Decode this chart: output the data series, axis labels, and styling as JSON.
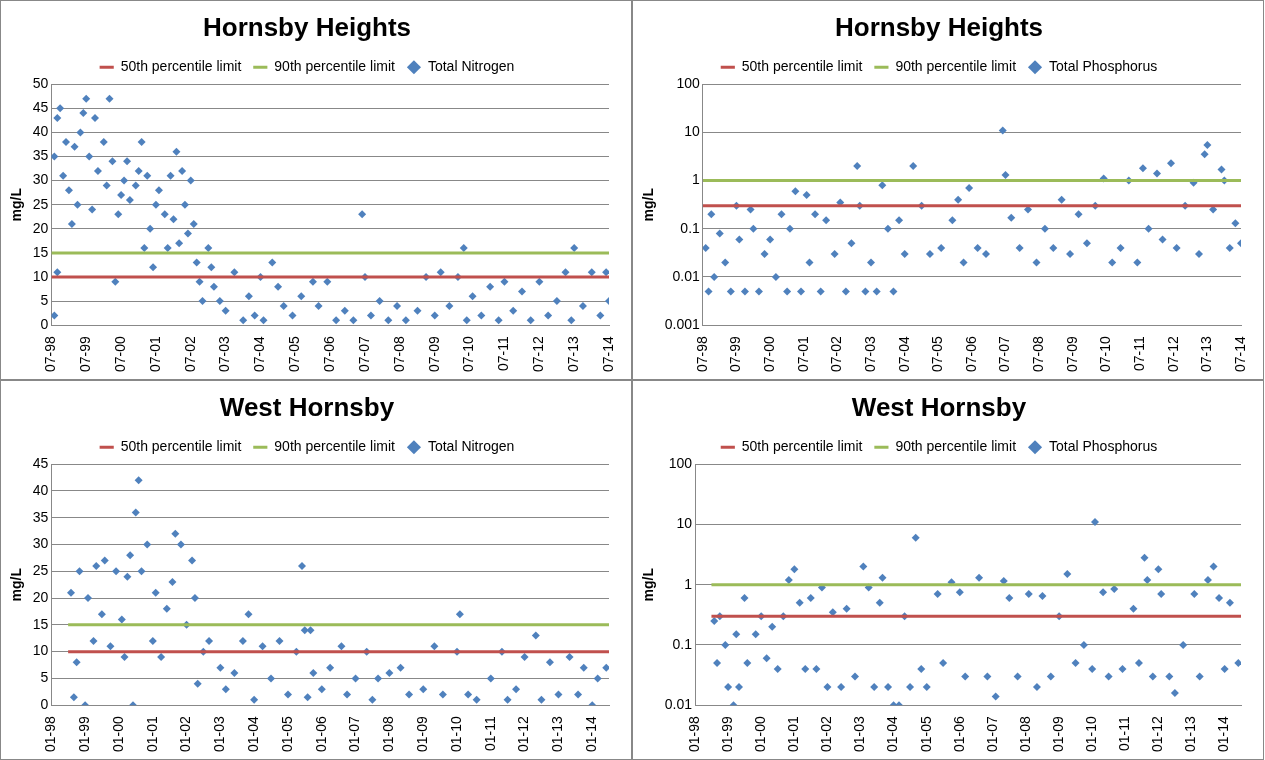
{
  "chart_data": [
    {
      "type": "scatter",
      "title": "Hornsby Heights",
      "ylabel": "mg/L",
      "legend": "top",
      "grid": "y",
      "xlim": [
        "1998-07",
        "2014-07"
      ],
      "ylim": [
        0,
        50
      ],
      "yticks": [
        0,
        5,
        10,
        15,
        20,
        25,
        30,
        35,
        40,
        45,
        50
      ],
      "xticks": [
        {
          "value": "1998-07",
          "label": "07-98"
        },
        {
          "value": "1999-07",
          "label": "07-99"
        },
        {
          "value": "2000-07",
          "label": "07-00"
        },
        {
          "value": "2001-07",
          "label": "07-01"
        },
        {
          "value": "2002-07",
          "label": "07-02"
        },
        {
          "value": "2003-07",
          "label": "07-03"
        },
        {
          "value": "2004-07",
          "label": "07-04"
        },
        {
          "value": "2005-07",
          "label": "07-05"
        },
        {
          "value": "2006-07",
          "label": "07-06"
        },
        {
          "value": "2007-07",
          "label": "07-07"
        },
        {
          "value": "2008-07",
          "label": "07-08"
        },
        {
          "value": "2009-07",
          "label": "07-09"
        },
        {
          "value": "2010-07",
          "label": "07-10"
        },
        {
          "value": "2011-07",
          "label": "07-11"
        },
        {
          "value": "2012-07",
          "label": "07-12"
        },
        {
          "value": "2013-07",
          "label": "07-13"
        },
        {
          "value": "2014-07",
          "label": "07-14"
        }
      ],
      "series": [
        {
          "name": "50th percentile limit",
          "type": "line",
          "color": "#c0504d",
          "x": [
            "1998-07",
            "2014-07"
          ],
          "values": [
            10,
            10
          ]
        },
        {
          "name": "90th percentile limit",
          "type": "line",
          "color": "#9bbb59",
          "x": [
            "1998-07",
            "2014-07"
          ],
          "values": [
            15,
            15
          ]
        },
        {
          "name": "Total Nitrogen",
          "marker": "diamond",
          "color": "#4f81bd",
          "x": [
            "1998-08",
            "1998-08",
            "1998-09",
            "1998-09",
            "1998-10",
            "1998-11",
            "1998-12",
            "1999-01",
            "1999-02",
            "1999-03",
            "1999-04",
            "1999-05",
            "1999-06",
            "1999-07",
            "1999-08",
            "1999-09",
            "1999-10",
            "1999-11",
            "2000-01",
            "2000-02",
            "2000-03",
            "2000-04",
            "2000-05",
            "2000-06",
            "2000-07",
            "2000-08",
            "2000-09",
            "2000-10",
            "2000-12",
            "2001-01",
            "2001-02",
            "2001-03",
            "2001-04",
            "2001-05",
            "2001-06",
            "2001-07",
            "2001-08",
            "2001-10",
            "2001-11",
            "2001-12",
            "2002-01",
            "2002-02",
            "2002-03",
            "2002-04",
            "2002-05",
            "2002-06",
            "2002-07",
            "2002-08",
            "2002-09",
            "2002-10",
            "2002-11",
            "2003-01",
            "2003-02",
            "2003-03",
            "2003-05",
            "2003-07",
            "2003-10",
            "2004-01",
            "2004-03",
            "2004-05",
            "2004-07",
            "2004-08",
            "2004-11",
            "2005-01",
            "2005-03",
            "2005-06",
            "2005-09",
            "2006-01",
            "2006-03",
            "2006-06",
            "2006-09",
            "2006-12",
            "2007-03",
            "2007-06",
            "2007-07",
            "2007-09",
            "2007-12",
            "2008-03",
            "2008-06",
            "2008-09",
            "2009-01",
            "2009-04",
            "2009-07",
            "2009-09",
            "2009-12",
            "2010-03",
            "2010-05",
            "2010-06",
            "2010-08",
            "2010-11",
            "2011-02",
            "2011-05",
            "2011-07",
            "2011-10",
            "2012-01",
            "2012-04",
            "2012-07",
            "2012-10",
            "2013-01",
            "2013-04",
            "2013-06",
            "2013-07",
            "2013-10",
            "2014-01",
            "2014-04",
            "2014-06",
            "2014-07"
          ],
          "values": [
            35,
            2,
            43,
            11,
            45,
            31,
            38,
            28,
            21,
            37,
            25,
            40,
            44,
            47,
            35,
            24,
            43,
            32,
            38,
            29,
            47,
            34,
            9,
            23,
            27,
            30,
            34,
            26,
            29,
            32,
            38,
            16,
            31,
            20,
            12,
            25,
            28,
            23,
            16,
            31,
            22,
            36,
            17,
            32,
            25,
            19,
            30,
            21,
            13,
            9,
            5,
            16,
            12,
            8,
            5,
            3,
            11,
            1,
            6,
            2,
            10,
            1,
            13,
            8,
            4,
            2,
            6,
            9,
            4,
            9,
            1,
            3,
            1,
            23,
            10,
            2,
            5,
            1,
            4,
            1,
            3,
            10,
            2,
            11,
            4,
            10,
            16,
            1,
            6,
            2,
            8,
            1,
            9,
            3,
            7,
            1,
            9,
            2,
            5,
            11,
            1,
            16,
            4,
            11,
            2,
            11,
            5
          ]
        }
      ]
    },
    {
      "type": "scatter",
      "title": "Hornsby Heights",
      "ylabel": "mg/L",
      "legend": "top",
      "grid": "y",
      "log": "y",
      "xlim": [
        "1998-07",
        "2014-07"
      ],
      "ylim": [
        0.001,
        100
      ],
      "yticks": [
        0.001,
        0.01,
        0.1,
        1,
        10,
        100
      ],
      "xticks": [
        {
          "value": "1998-07",
          "label": "07-98"
        },
        {
          "value": "1999-07",
          "label": "07-99"
        },
        {
          "value": "2000-07",
          "label": "07-00"
        },
        {
          "value": "2001-07",
          "label": "07-01"
        },
        {
          "value": "2002-07",
          "label": "07-02"
        },
        {
          "value": "2003-07",
          "label": "07-03"
        },
        {
          "value": "2004-07",
          "label": "07-04"
        },
        {
          "value": "2005-07",
          "label": "07-05"
        },
        {
          "value": "2006-07",
          "label": "07-06"
        },
        {
          "value": "2007-07",
          "label": "07-07"
        },
        {
          "value": "2008-07",
          "label": "07-08"
        },
        {
          "value": "2009-07",
          "label": "07-09"
        },
        {
          "value": "2010-07",
          "label": "07-10"
        },
        {
          "value": "2011-07",
          "label": "07-11"
        },
        {
          "value": "2012-07",
          "label": "07-12"
        },
        {
          "value": "2013-07",
          "label": "07-13"
        },
        {
          "value": "2014-07",
          "label": "07-14"
        }
      ],
      "series": [
        {
          "name": "50th percentile limit",
          "type": "line",
          "color": "#c0504d",
          "x": [
            "1998-07",
            "2014-07"
          ],
          "values": [
            0.3,
            0.3
          ]
        },
        {
          "name": "90th percentile limit",
          "type": "line",
          "color": "#9bbb59",
          "x": [
            "1998-07",
            "2014-07"
          ],
          "values": [
            1,
            1
          ]
        },
        {
          "name": "Total Phosphorus",
          "marker": "diamond",
          "color": "#4f81bd",
          "x": [
            "1998-08",
            "1998-09",
            "1998-10",
            "1998-11",
            "1999-01",
            "1999-03",
            "1999-05",
            "1999-07",
            "1999-08",
            "1999-10",
            "1999-12",
            "2000-01",
            "2000-03",
            "2000-05",
            "2000-07",
            "2000-09",
            "2000-11",
            "2001-01",
            "2001-02",
            "2001-04",
            "2001-06",
            "2001-08",
            "2001-09",
            "2001-11",
            "2002-01",
            "2002-03",
            "2002-06",
            "2002-08",
            "2002-10",
            "2002-12",
            "2003-02",
            "2003-03",
            "2003-05",
            "2003-07",
            "2003-09",
            "2003-11",
            "2004-01",
            "2004-03",
            "2004-05",
            "2004-07",
            "2004-10",
            "2005-01",
            "2005-04",
            "2005-08",
            "2005-12",
            "2006-02",
            "2006-04",
            "2006-06",
            "2006-09",
            "2006-12",
            "2007-06",
            "2007-07",
            "2007-09",
            "2007-12",
            "2008-03",
            "2008-06",
            "2008-09",
            "2008-12",
            "2009-03",
            "2009-06",
            "2009-09",
            "2009-12",
            "2010-03",
            "2010-06",
            "2010-09",
            "2010-12",
            "2011-03",
            "2011-06",
            "2011-08",
            "2011-10",
            "2012-01",
            "2012-03",
            "2012-06",
            "2012-08",
            "2012-11",
            "2013-02",
            "2013-04",
            "2013-06",
            "2013-07",
            "2013-09",
            "2013-12",
            "2014-01",
            "2014-03",
            "2014-05",
            "2014-07"
          ],
          "values": [
            0.04,
            0.005,
            0.2,
            0.01,
            0.08,
            0.02,
            0.005,
            0.3,
            0.06,
            0.005,
            0.25,
            0.1,
            0.005,
            0.03,
            0.06,
            0.01,
            0.2,
            0.005,
            0.1,
            0.6,
            0.005,
            0.5,
            0.02,
            0.2,
            0.005,
            0.15,
            0.03,
            0.35,
            0.005,
            0.05,
            2,
            0.3,
            0.005,
            0.02,
            0.005,
            0.8,
            0.1,
            0.005,
            0.15,
            0.03,
            2,
            0.3,
            0.03,
            0.04,
            0.15,
            0.4,
            0.02,
            0.7,
            0.04,
            0.03,
            11,
            1.3,
            0.17,
            0.04,
            0.25,
            0.02,
            0.1,
            0.04,
            0.4,
            0.03,
            0.2,
            0.05,
            0.3,
            1.1,
            0.02,
            0.04,
            1,
            0.02,
            1.8,
            0.1,
            1.4,
            0.06,
            2.3,
            0.04,
            0.3,
            0.9,
            0.03,
            3.5,
            5.5,
            0.25,
            1.7,
            1,
            0.04,
            0.13,
            0.05
          ]
        }
      ]
    },
    {
      "type": "scatter",
      "title": "West Hornsby",
      "ylabel": "mg/L",
      "legend": "top",
      "grid": "y",
      "xlim": [
        "1998-01",
        "2014-07"
      ],
      "ylim": [
        0,
        45
      ],
      "yticks": [
        0,
        5,
        10,
        15,
        20,
        25,
        30,
        35,
        40,
        45
      ],
      "xticks": [
        {
          "value": "1998-01",
          "label": "01-98"
        },
        {
          "value": "1999-01",
          "label": "01-99"
        },
        {
          "value": "2000-01",
          "label": "01-00"
        },
        {
          "value": "2001-01",
          "label": "01-01"
        },
        {
          "value": "2002-01",
          "label": "01-02"
        },
        {
          "value": "2003-01",
          "label": "01-03"
        },
        {
          "value": "2004-01",
          "label": "01-04"
        },
        {
          "value": "2005-01",
          "label": "01-05"
        },
        {
          "value": "2006-01",
          "label": "01-06"
        },
        {
          "value": "2007-01",
          "label": "01-07"
        },
        {
          "value": "2008-01",
          "label": "01-08"
        },
        {
          "value": "2009-01",
          "label": "01-09"
        },
        {
          "value": "2010-01",
          "label": "01-10"
        },
        {
          "value": "2011-01",
          "label": "01-11"
        },
        {
          "value": "2012-01",
          "label": "01-12"
        },
        {
          "value": "2013-01",
          "label": "01-13"
        },
        {
          "value": "2014-01",
          "label": "01-14"
        }
      ],
      "series": [
        {
          "name": "50th percentile limit",
          "type": "line",
          "color": "#c0504d",
          "x": [
            "1998-07",
            "2014-07"
          ],
          "values": [
            10,
            10
          ]
        },
        {
          "name": "90th percentile limit",
          "type": "line",
          "color": "#9bbb59",
          "x": [
            "1998-07",
            "2014-07"
          ],
          "values": [
            15,
            15
          ]
        },
        {
          "name": "Total Nitrogen",
          "marker": "diamond",
          "color": "#4f81bd",
          "x": [
            "1998-08",
            "1998-09",
            "1998-10",
            "1998-11",
            "1999-01",
            "1999-02",
            "1999-04",
            "1999-05",
            "1999-07",
            "1999-08",
            "1999-10",
            "1999-12",
            "2000-02",
            "2000-03",
            "2000-04",
            "2000-05",
            "2000-06",
            "2000-07",
            "2000-08",
            "2000-09",
            "2000-11",
            "2001-01",
            "2001-02",
            "2001-04",
            "2001-06",
            "2001-08",
            "2001-09",
            "2001-11",
            "2002-01",
            "2002-03",
            "2002-04",
            "2002-05",
            "2002-07",
            "2002-09",
            "2003-01",
            "2003-03",
            "2003-06",
            "2003-09",
            "2003-11",
            "2004-01",
            "2004-04",
            "2004-07",
            "2004-10",
            "2005-01",
            "2005-04",
            "2005-06",
            "2005-07",
            "2005-08",
            "2005-09",
            "2005-10",
            "2006-01",
            "2006-04",
            "2006-08",
            "2006-10",
            "2007-01",
            "2007-05",
            "2007-07",
            "2007-09",
            "2008-01",
            "2008-05",
            "2008-08",
            "2009-01",
            "2009-05",
            "2009-08",
            "2010-01",
            "2010-02",
            "2010-05",
            "2010-08",
            "2011-01",
            "2011-05",
            "2011-07",
            "2011-10",
            "2012-01",
            "2012-05",
            "2012-07",
            "2012-10",
            "2013-01",
            "2013-05",
            "2013-08",
            "2013-10",
            "2014-01",
            "2014-03",
            "2014-06"
          ],
          "values": [
            21,
            1.5,
            8,
            25,
            0,
            20,
            12,
            26,
            17,
            27,
            11,
            25,
            16,
            9,
            24,
            28,
            0,
            36,
            42,
            25,
            30,
            12,
            21,
            9,
            18,
            23,
            32,
            30,
            15,
            27,
            20,
            4,
            10,
            12,
            7,
            3,
            6,
            12,
            17,
            1,
            11,
            5,
            12,
            2,
            10,
            26,
            14,
            1.5,
            14,
            6,
            3,
            7,
            11,
            2,
            5,
            10,
            1,
            5,
            6,
            7,
            2,
            3,
            11,
            2,
            10,
            17,
            2,
            1,
            5,
            10,
            1,
            3,
            9,
            13,
            1,
            8,
            2,
            9,
            2,
            7,
            0,
            5,
            7
          ]
        }
      ]
    },
    {
      "type": "scatter",
      "title": "West Hornsby",
      "ylabel": "mg/L",
      "legend": "top",
      "grid": "y",
      "log": "y",
      "xlim": [
        "1998-01",
        "2014-07"
      ],
      "ylim": [
        0.01,
        100
      ],
      "yticks": [
        0.01,
        0.1,
        1,
        10,
        100
      ],
      "xticks": [
        {
          "value": "1998-01",
          "label": "01-98"
        },
        {
          "value": "1999-01",
          "label": "01-99"
        },
        {
          "value": "2000-01",
          "label": "01-00"
        },
        {
          "value": "2001-01",
          "label": "01-01"
        },
        {
          "value": "2002-01",
          "label": "01-02"
        },
        {
          "value": "2003-01",
          "label": "01-03"
        },
        {
          "value": "2004-01",
          "label": "01-04"
        },
        {
          "value": "2005-01",
          "label": "01-05"
        },
        {
          "value": "2006-01",
          "label": "01-06"
        },
        {
          "value": "2007-01",
          "label": "01-07"
        },
        {
          "value": "2008-01",
          "label": "01-08"
        },
        {
          "value": "2009-01",
          "label": "01-09"
        },
        {
          "value": "2010-01",
          "label": "01-10"
        },
        {
          "value": "2011-01",
          "label": "01-11"
        },
        {
          "value": "2012-01",
          "label": "01-12"
        },
        {
          "value": "2013-01",
          "label": "01-13"
        },
        {
          "value": "2014-01",
          "label": "01-14"
        }
      ],
      "series": [
        {
          "name": "50th percentile limit",
          "type": "line",
          "color": "#c0504d",
          "x": [
            "1998-07",
            "2014-07"
          ],
          "values": [
            0.3,
            0.3
          ]
        },
        {
          "name": "90th percentile limit",
          "type": "line",
          "color": "#9bbb59",
          "x": [
            "1998-07",
            "2014-07"
          ],
          "values": [
            1,
            1
          ]
        },
        {
          "name": "Total Phosphorus",
          "marker": "diamond",
          "color": "#4f81bd",
          "x": [
            "1998-08",
            "1998-09",
            "1998-10",
            "1998-12",
            "1999-01",
            "1999-03",
            "1999-04",
            "1999-05",
            "1999-07",
            "1999-08",
            "1999-11",
            "2000-01",
            "2000-03",
            "2000-05",
            "2000-07",
            "2000-09",
            "2000-11",
            "2001-01",
            "2001-03",
            "2001-05",
            "2001-07",
            "2001-09",
            "2001-11",
            "2002-01",
            "2002-03",
            "2002-06",
            "2002-08",
            "2002-11",
            "2003-02",
            "2003-04",
            "2003-06",
            "2003-08",
            "2003-09",
            "2003-11",
            "2004-01",
            "2004-03",
            "2004-05",
            "2004-07",
            "2004-09",
            "2004-11",
            "2005-01",
            "2005-05",
            "2005-07",
            "2005-10",
            "2006-01",
            "2006-03",
            "2006-08",
            "2006-11",
            "2007-02",
            "2007-05",
            "2007-07",
            "2007-10",
            "2008-02",
            "2008-05",
            "2008-07",
            "2008-10",
            "2009-01",
            "2009-04",
            "2009-07",
            "2009-10",
            "2010-01",
            "2010-02",
            "2010-05",
            "2010-07",
            "2010-09",
            "2010-12",
            "2011-04",
            "2011-06",
            "2011-08",
            "2011-09",
            "2011-11",
            "2012-01",
            "2012-02",
            "2012-05",
            "2012-07",
            "2012-10",
            "2013-02",
            "2013-04",
            "2013-07",
            "2013-09",
            "2013-11",
            "2014-01",
            "2014-03",
            "2014-06"
          ],
          "values": [
            0.25,
            0.05,
            0.3,
            0.1,
            0.02,
            0.01,
            0.15,
            0.02,
            0.6,
            0.05,
            0.15,
            0.3,
            0.06,
            0.2,
            0.04,
            0.3,
            1.2,
            1.8,
            0.5,
            0.04,
            0.6,
            0.04,
            0.9,
            0.02,
            0.35,
            0.02,
            0.4,
            0.03,
            2,
            0.9,
            0.02,
            0.5,
            1.3,
            0.02,
            0.01,
            0.01,
            0.3,
            0.02,
            6,
            0.04,
            0.02,
            0.7,
            0.05,
            1.1,
            0.75,
            0.03,
            1.3,
            0.03,
            0.014,
            1.15,
            0.6,
            0.03,
            0.7,
            0.02,
            0.65,
            0.03,
            0.3,
            1.5,
            0.05,
            0.1,
            0.04,
            11,
            0.75,
            0.03,
            0.85,
            0.04,
            0.4,
            0.05,
            2.8,
            1.2,
            0.03,
            1.8,
            0.7,
            0.03,
            0.016,
            0.1,
            0.7,
            0.03,
            1.2,
            2,
            0.6,
            0.04,
            0.5,
            0.05
          ]
        }
      ]
    }
  ]
}
